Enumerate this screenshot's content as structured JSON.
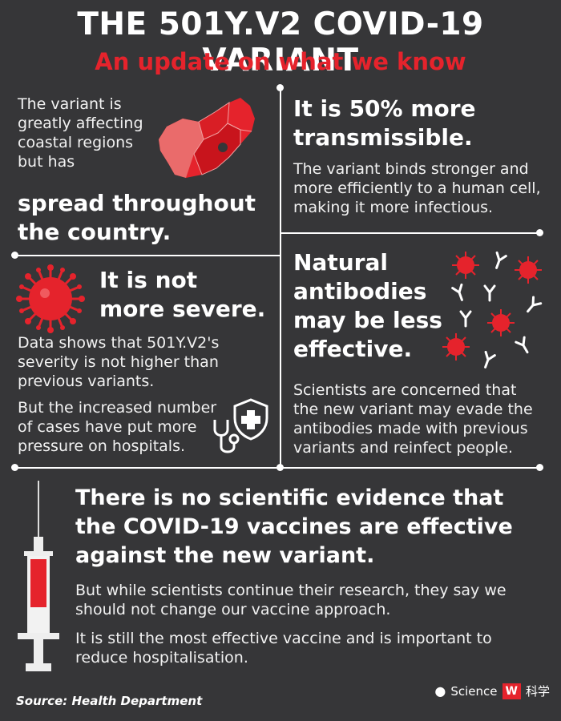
{
  "header": {
    "title": "THE 501Y.V2 COVID-19 VARIANT",
    "subtitle": "An update on what we know"
  },
  "panel_map": {
    "intro_lines": [
      "The variant is",
      "greatly affecting",
      "coastal regions",
      "but has"
    ],
    "headline_lines": [
      "spread throughout",
      "the country."
    ]
  },
  "panel_transmissible": {
    "headline_lines": [
      "It is 50% more",
      "transmissible."
    ],
    "body_lines": [
      "The variant binds stronger and",
      "more efficiently to a human cell,",
      "making it more infectious."
    ]
  },
  "panel_severity": {
    "headline_lines": [
      "It is not",
      "more severe."
    ],
    "body_lines": [
      "Data shows that 501Y.V2's",
      "severity is not higher than",
      "previous variants."
    ],
    "body2_lines": [
      "But the increased number",
      "of cases have put more",
      "pressure on hospitals."
    ]
  },
  "panel_antibodies": {
    "headline_lines": [
      "Natural",
      "antibodies",
      "may be less",
      "effective."
    ],
    "body_lines": [
      "Scientists are concerned that",
      "the new variant may evade the",
      "antibodies made with previous",
      "variants and reinfect people."
    ]
  },
  "panel_vaccine": {
    "headline_lines": [
      "There is no scientific evidence that",
      "the COVID-19 vaccines are effective",
      "against the new variant."
    ],
    "body_lines": [
      "But while scientists continue their research, they say we",
      "should not change our vaccine approach."
    ],
    "body2_lines": [
      "It is still the most effective vaccine and is important to",
      "reduce hospitalisation."
    ]
  },
  "footer": {
    "source": "Source: Health Department",
    "watermark_text": "Science",
    "watermark_box": "W",
    "watermark_suffix": "科学"
  },
  "colors": {
    "background": "#363638",
    "accent": "#e5232c",
    "text": "#ffffff"
  },
  "icons": [
    "south-africa-map",
    "virus-icon",
    "shield-cross-icon",
    "stethoscope-icon",
    "antibody-icon",
    "syringe-icon"
  ]
}
